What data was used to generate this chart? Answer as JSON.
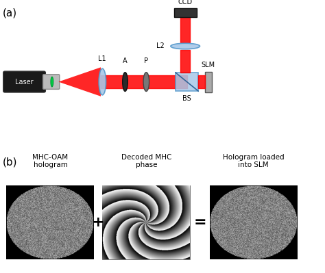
{
  "panel_a_label": "(a)",
  "panel_b_label": "(b)",
  "labels": {
    "laser": "Laser",
    "L1": "L1",
    "A": "A",
    "P": "P",
    "BS": "BS",
    "SLM": "SLM",
    "L2": "L2",
    "CCD": "CCD"
  },
  "bottom_labels": {
    "left": "MHC-OAM\nhologram",
    "middle": "Decoded MHC\nphase",
    "right": "Hologram loaded\ninto SLM"
  },
  "operators": [
    "+",
    "="
  ],
  "bg_color": "#ffffff",
  "beam_color": "#ff0000",
  "lens_color": "#a8c8e8",
  "optic_color": "#808080",
  "bs_color": "#a8c8e8"
}
